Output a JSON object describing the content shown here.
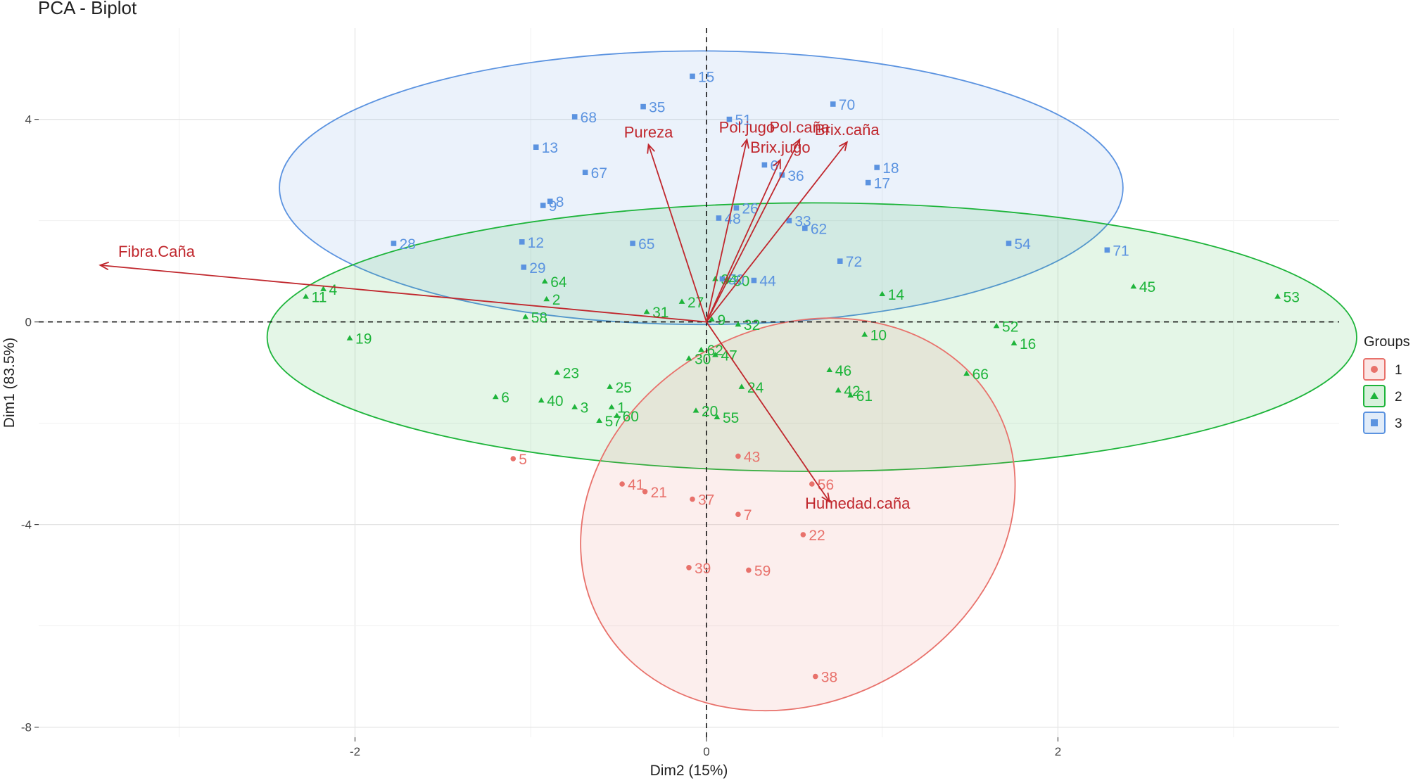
{
  "chart_data": {
    "type": "scatter",
    "title": "PCA - Biplot",
    "xlabel": "Dim2 (15%)",
    "ylabel": "Dim1 (83.5%)",
    "xlim": [
      -3.8,
      3.6
    ],
    "ylim": [
      -8.2,
      5.8
    ],
    "x_ticks": [
      {
        "value": -2,
        "label": "-2"
      },
      {
        "value": 0,
        "label": "0"
      },
      {
        "value": 2,
        "label": "2"
      }
    ],
    "y_ticks": [
      {
        "value": 4,
        "label": "4"
      },
      {
        "value": 0,
        "label": "0"
      },
      {
        "value": -4,
        "label": "-4"
      },
      {
        "value": -8,
        "label": "-8"
      }
    ],
    "grid": true,
    "legend": {
      "title": "Groups",
      "position": "right",
      "entries": [
        {
          "label": "1",
          "group": "1"
        },
        {
          "label": "2",
          "group": "2"
        },
        {
          "label": "3",
          "group": "3"
        }
      ]
    },
    "groups": {
      "1": {
        "color": "#E8716B",
        "shape": "circle"
      },
      "2": {
        "color": "#1DB43A",
        "shape": "triangle"
      },
      "3": {
        "color": "#5B93E0",
        "shape": "square"
      }
    },
    "arrow_color": "#C0272D",
    "ellipses": [
      {
        "group": "3",
        "cx": -0.03,
        "cy": 2.65,
        "rx": 2.4,
        "ry": 2.7
      },
      {
        "group": "2",
        "cx": 0.6,
        "cy": -0.3,
        "rx": 3.1,
        "ry": 2.65,
        "angle_deg": 0
      },
      {
        "group": "1",
        "cx": 0.52,
        "cy": -3.8,
        "rx": 1.28,
        "ry": 3.7,
        "angle_deg": 28
      }
    ],
    "variables": [
      {
        "name": "Fibra.Caña",
        "x": -3.45,
        "y": 1.12
      },
      {
        "name": "Pureza",
        "x": -0.33,
        "y": 3.5
      },
      {
        "name": "Pol.jugo",
        "x": 0.23,
        "y": 3.6
      },
      {
        "name": "Pol.caña",
        "x": 0.53,
        "y": 3.6
      },
      {
        "name": "Brix.jugo",
        "x": 0.42,
        "y": 3.2
      },
      {
        "name": "Brix.caña",
        "x": 0.8,
        "y": 3.55
      },
      {
        "name": "Humedad.caña",
        "x": 0.7,
        "y": -3.55
      }
    ],
    "points": [
      {
        "label": "5",
        "group": "1",
        "x": -1.1,
        "y": -2.7
      },
      {
        "label": "43",
        "group": "1",
        "x": 0.18,
        "y": -2.65
      },
      {
        "label": "56",
        "group": "1",
        "x": 0.6,
        "y": -3.2
      },
      {
        "label": "41",
        "group": "1",
        "x": -0.48,
        "y": -3.2
      },
      {
        "label": "21",
        "group": "1",
        "x": -0.35,
        "y": -3.35
      },
      {
        "label": "37",
        "group": "1",
        "x": -0.08,
        "y": -3.5
      },
      {
        "label": "7",
        "group": "1",
        "x": 0.18,
        "y": -3.8
      },
      {
        "label": "22",
        "group": "1",
        "x": 0.55,
        "y": -4.2
      },
      {
        "label": "59",
        "group": "1",
        "x": 0.24,
        "y": -4.9
      },
      {
        "label": "39",
        "group": "1",
        "x": -0.1,
        "y": -4.85
      },
      {
        "label": "38",
        "group": "1",
        "x": 0.62,
        "y": -7.0
      },
      {
        "label": "4",
        "group": "2",
        "x": -2.18,
        "y": 0.65
      },
      {
        "label": "11",
        "group": "2",
        "x": -2.28,
        "y": 0.5
      },
      {
        "label": "19",
        "group": "2",
        "x": -2.03,
        "y": -0.32
      },
      {
        "label": "58",
        "group": "2",
        "x": -1.03,
        "y": 0.1
      },
      {
        "label": "64",
        "group": "2",
        "x": -0.92,
        "y": 0.8
      },
      {
        "label": "2",
        "group": "2",
        "x": -0.91,
        "y": 0.45
      },
      {
        "label": "34",
        "group": "2",
        "x": 0.05,
        "y": 0.85
      },
      {
        "label": "27",
        "group": "2",
        "x": -0.14,
        "y": 0.4
      },
      {
        "label": "31",
        "group": "2",
        "x": -0.34,
        "y": 0.2
      },
      {
        "label": "50",
        "group": "2",
        "x": 0.12,
        "y": 0.82
      },
      {
        "label": "9",
        "group": "2",
        "x": 0.03,
        "y": 0.05
      },
      {
        "label": "32",
        "group": "2",
        "x": 0.18,
        "y": -0.05
      },
      {
        "label": "14",
        "group": "2",
        "x": 1.0,
        "y": 0.55
      },
      {
        "label": "52",
        "group": "2",
        "x": 1.65,
        "y": -0.08
      },
      {
        "label": "45",
        "group": "2",
        "x": 2.43,
        "y": 0.7
      },
      {
        "label": "53",
        "group": "2",
        "x": 3.25,
        "y": 0.5
      },
      {
        "label": "10",
        "group": "2",
        "x": 0.9,
        "y": -0.25
      },
      {
        "label": "16",
        "group": "2",
        "x": 1.75,
        "y": -0.42
      },
      {
        "label": "46",
        "group": "2",
        "x": 0.7,
        "y": -0.95
      },
      {
        "label": "66",
        "group": "2",
        "x": 1.48,
        "y": -1.02
      },
      {
        "label": "42",
        "group": "2",
        "x": 0.75,
        "y": -1.35
      },
      {
        "label": "61",
        "group": "2",
        "x": 0.82,
        "y": -1.45
      },
      {
        "label": "62",
        "group": "2",
        "x": -0.03,
        "y": -0.55
      },
      {
        "label": "47",
        "group": "2",
        "x": 0.05,
        "y": -0.65
      },
      {
        "label": "30",
        "group": "2",
        "x": -0.1,
        "y": -0.72
      },
      {
        "label": "24",
        "group": "2",
        "x": 0.2,
        "y": -1.28
      },
      {
        "label": "23",
        "group": "2",
        "x": -0.85,
        "y": -1.0
      },
      {
        "label": "25",
        "group": "2",
        "x": -0.55,
        "y": -1.28
      },
      {
        "label": "6",
        "group": "2",
        "x": -1.2,
        "y": -1.48
      },
      {
        "label": "40",
        "group": "2",
        "x": -0.94,
        "y": -1.55
      },
      {
        "label": "3",
        "group": "2",
        "x": -0.75,
        "y": -1.68
      },
      {
        "label": "1",
        "group": "2",
        "x": -0.54,
        "y": -1.68
      },
      {
        "label": "20",
        "group": "2",
        "x": -0.06,
        "y": -1.75
      },
      {
        "label": "55",
        "group": "2",
        "x": 0.06,
        "y": -1.88
      },
      {
        "label": "57",
        "group": "2",
        "x": -0.61,
        "y": -1.95
      },
      {
        "label": "60",
        "group": "2",
        "x": -0.51,
        "y": -1.85
      },
      {
        "label": "15",
        "group": "3",
        "x": -0.08,
        "y": 4.85
      },
      {
        "label": "35",
        "group": "3",
        "x": -0.36,
        "y": 4.25
      },
      {
        "label": "68",
        "group": "3",
        "x": -0.75,
        "y": 4.05
      },
      {
        "label": "70",
        "group": "3",
        "x": 0.72,
        "y": 4.3
      },
      {
        "label": "51",
        "group": "3",
        "x": 0.13,
        "y": 4.0
      },
      {
        "label": "13",
        "group": "3",
        "x": -0.97,
        "y": 3.45
      },
      {
        "label": "67",
        "group": "3",
        "x": -0.69,
        "y": 2.95
      },
      {
        "label": "6",
        "group": "3",
        "x": 0.33,
        "y": 3.1
      },
      {
        "label": "18",
        "group": "3",
        "x": 0.97,
        "y": 3.05
      },
      {
        "label": "36",
        "group": "3",
        "x": 0.43,
        "y": 2.9
      },
      {
        "label": "17",
        "group": "3",
        "x": 0.92,
        "y": 2.75
      },
      {
        "label": "8",
        "group": "3",
        "x": -0.89,
        "y": 2.38
      },
      {
        "label": "9",
        "group": "3",
        "x": -0.93,
        "y": 2.3
      },
      {
        "label": "26",
        "group": "3",
        "x": 0.17,
        "y": 2.25
      },
      {
        "label": "33",
        "group": "3",
        "x": 0.47,
        "y": 2.0
      },
      {
        "label": "48",
        "group": "3",
        "x": 0.07,
        "y": 2.05
      },
      {
        "label": "62",
        "group": "3",
        "x": 0.56,
        "y": 1.85
      },
      {
        "label": "28",
        "group": "3",
        "x": -1.78,
        "y": 1.55
      },
      {
        "label": "12",
        "group": "3",
        "x": -1.05,
        "y": 1.58
      },
      {
        "label": "54",
        "group": "3",
        "x": 1.72,
        "y": 1.55
      },
      {
        "label": "71",
        "group": "3",
        "x": 2.28,
        "y": 1.42
      },
      {
        "label": "65",
        "group": "3",
        "x": -0.42,
        "y": 1.55
      },
      {
        "label": "29",
        "group": "3",
        "x": -1.04,
        "y": 1.08
      },
      {
        "label": "72",
        "group": "3",
        "x": 0.76,
        "y": 1.2
      },
      {
        "label": "50",
        "group": "3",
        "x": 0.09,
        "y": 0.85
      },
      {
        "label": "44",
        "group": "3",
        "x": 0.27,
        "y": 0.82
      }
    ]
  }
}
